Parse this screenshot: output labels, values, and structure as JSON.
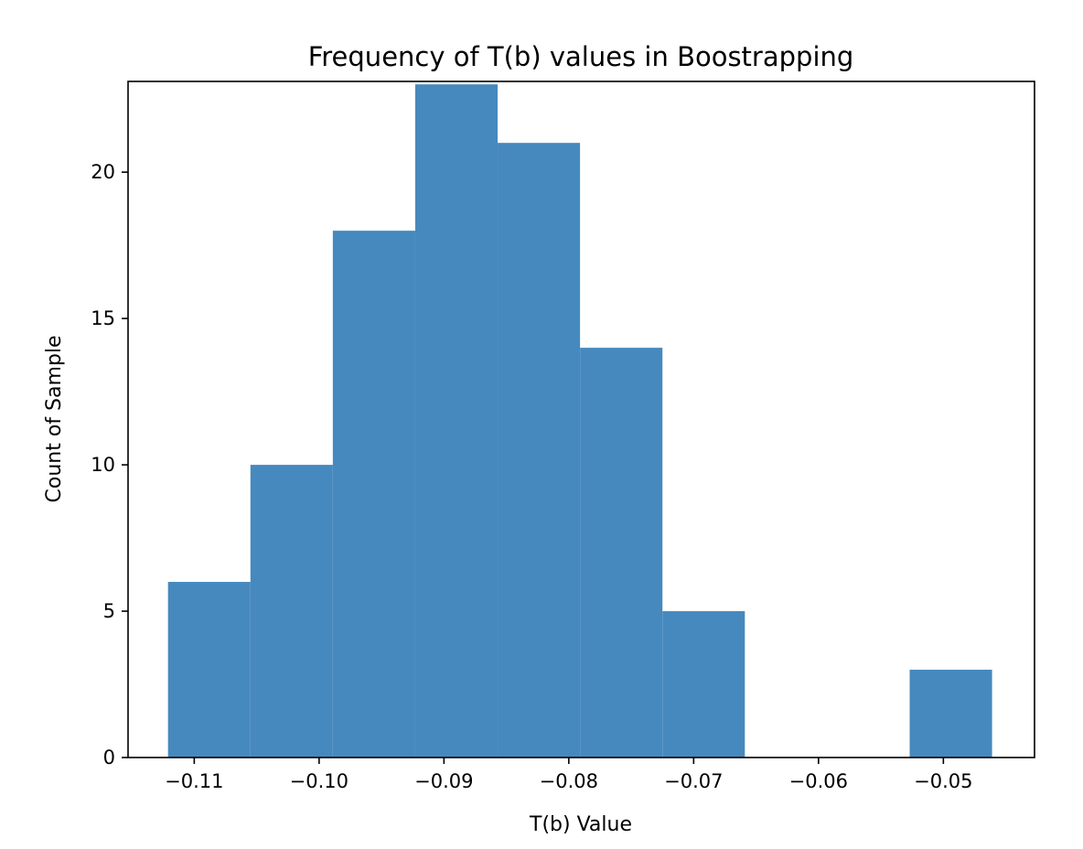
{
  "chart_data": {
    "type": "bar",
    "title": "Frequency of T(b) values in Boostrapping",
    "xlabel": "T(b) Value",
    "ylabel": "Count of Sample",
    "xlim": [
      -0.1153,
      -0.0427
    ],
    "ylim": [
      0,
      23.1
    ],
    "grid": false,
    "legend": "none",
    "bar_color": "#4689be",
    "bins": [
      {
        "x0": -0.1121,
        "x1": -0.1055,
        "count": 6
      },
      {
        "x0": -0.1055,
        "x1": -0.0989,
        "count": 10
      },
      {
        "x0": -0.0989,
        "x1": -0.0923,
        "count": 18
      },
      {
        "x0": -0.0923,
        "x1": -0.0857,
        "count": 23
      },
      {
        "x0": -0.0857,
        "x1": -0.0791,
        "count": 21
      },
      {
        "x0": -0.0791,
        "x1": -0.0725,
        "count": 14
      },
      {
        "x0": -0.0725,
        "x1": -0.0659,
        "count": 5
      },
      {
        "x0": -0.0659,
        "x1": -0.0593,
        "count": 0
      },
      {
        "x0": -0.0593,
        "x1": -0.0527,
        "count": 0
      },
      {
        "x0": -0.0527,
        "x1": -0.0461,
        "count": 3
      }
    ],
    "x_ticks": [
      {
        "value": -0.11,
        "label": "−0.11"
      },
      {
        "value": -0.1,
        "label": "−0.10"
      },
      {
        "value": -0.09,
        "label": "−0.09"
      },
      {
        "value": -0.08,
        "label": "−0.08"
      },
      {
        "value": -0.07,
        "label": "−0.07"
      },
      {
        "value": -0.06,
        "label": "−0.06"
      },
      {
        "value": -0.05,
        "label": "−0.05"
      }
    ],
    "y_ticks": [
      {
        "value": 0,
        "label": "0"
      },
      {
        "value": 5,
        "label": "5"
      },
      {
        "value": 10,
        "label": "10"
      },
      {
        "value": 15,
        "label": "15"
      },
      {
        "value": 20,
        "label": "20"
      }
    ]
  }
}
